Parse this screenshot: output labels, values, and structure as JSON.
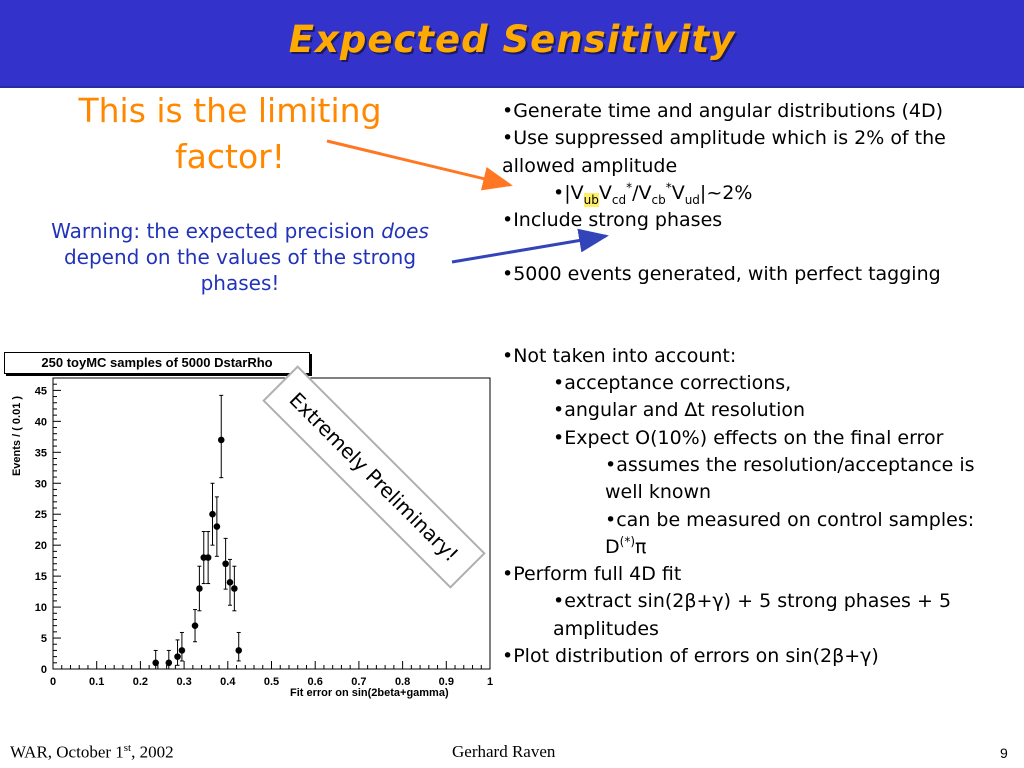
{
  "title": "Expected Sensitivity",
  "limiting_factor": "This is the limiting factor!",
  "warning": {
    "part1": "Warning: the expected precision ",
    "emphasis": "does",
    "part2": " depend on the values of the strong phases!"
  },
  "bullets": {
    "b1": "•Generate time and angular distributions (4D)",
    "b2": "•Use suppressed amplitude which is 2% of the allowed amplitude",
    "ckm": {
      "prefix": "•|V",
      "sub_ub": "ub",
      "v2": "V",
      "sub_cd": "cd",
      "star1": "*",
      "slash": "/V",
      "sub_cb": "cb",
      "star2": "*",
      "v4": "V",
      "sub_ud": "ud",
      "suffix": "|~2%"
    },
    "b3": "•Include strong phases",
    "b4": "•5000 events generated, with perfect tagging",
    "b5": "•Not taken into account:",
    "b5a": "•acceptance corrections,",
    "b5b": "•angular and ∆t resolution",
    "b5c": "•Expect O(10%) effects on the final error",
    "b5c1": "•assumes the resolution/acceptance is well known",
    "b5c2_prefix": "•can be measured on control samples: D",
    "b5c2_sup": "(*)",
    "b5c2_suffix": "π",
    "b6": "•Perform full 4D fit",
    "b6a": "•extract sin(2β+γ) + 5 strong phases + 5 amplitudes",
    "b7": "•Plot distribution of errors on sin(2β+γ)"
  },
  "stamp": "Extremely Preliminary!",
  "footer": {
    "left_prefix": "WAR, October 1",
    "left_sup": "st",
    "left_suffix": ", 2002",
    "center": "Gerhard Raven",
    "page": "9"
  },
  "chart_data": {
    "type": "scatter",
    "title": "250 toyMC samples of 5000 DstarRho",
    "xlabel": "Fit error on sin(2beta+gamma)",
    "ylabel": "Events / ( 0.01 )",
    "xlim": [
      0,
      1
    ],
    "ylim": [
      0,
      47
    ],
    "xticks": [
      "0",
      "0.1",
      "0.2",
      "0.3",
      "0.4",
      "0.5",
      "0.6",
      "0.7",
      "0.8",
      "0.9",
      "1"
    ],
    "yticks": [
      "0",
      "5",
      "10",
      "15",
      "20",
      "25",
      "30",
      "35",
      "40",
      "45"
    ],
    "grid": false,
    "points": [
      {
        "x": 0.235,
        "y": 1,
        "err_lo": 1,
        "err_hi": 2
      },
      {
        "x": 0.265,
        "y": 1,
        "err_lo": 1,
        "err_hi": 2
      },
      {
        "x": 0.285,
        "y": 2,
        "err_lo": 1.4,
        "err_hi": 2.7
      },
      {
        "x": 0.295,
        "y": 3,
        "err_lo": 1.7,
        "err_hi": 2.9
      },
      {
        "x": 0.325,
        "y": 7,
        "err_lo": 2.6,
        "err_hi": 2.6
      },
      {
        "x": 0.335,
        "y": 13,
        "err_lo": 3.6,
        "err_hi": 3.6
      },
      {
        "x": 0.345,
        "y": 18,
        "err_lo": 4.2,
        "err_hi": 4.2
      },
      {
        "x": 0.355,
        "y": 18,
        "err_lo": 4.2,
        "err_hi": 4.2
      },
      {
        "x": 0.365,
        "y": 25,
        "err_lo": 5,
        "err_hi": 5
      },
      {
        "x": 0.375,
        "y": 23,
        "err_lo": 4.8,
        "err_hi": 4.8
      },
      {
        "x": 0.385,
        "y": 37,
        "err_lo": 6.1,
        "err_hi": 7.2
      },
      {
        "x": 0.395,
        "y": 17,
        "err_lo": 4.1,
        "err_hi": 4.1
      },
      {
        "x": 0.405,
        "y": 14,
        "err_lo": 3.7,
        "err_hi": 3.7
      },
      {
        "x": 0.415,
        "y": 13,
        "err_lo": 3.6,
        "err_hi": 3.6
      },
      {
        "x": 0.425,
        "y": 3,
        "err_lo": 1.7,
        "err_hi": 2.9
      }
    ]
  }
}
